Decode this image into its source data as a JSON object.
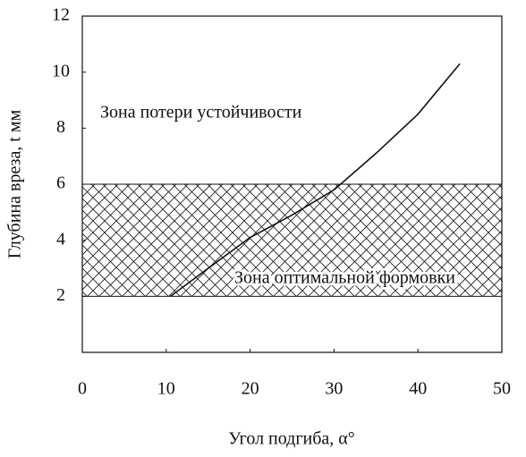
{
  "chart_data": {
    "type": "line",
    "x_label": "Угол подгиба, α°",
    "y_label": "Глубина вреза, t мм",
    "x": [
      10.5,
      15,
      20,
      25,
      30,
      35,
      40,
      45
    ],
    "series": [
      {
        "color": "#111111",
        "values": [
          2.0,
          3.0,
          4.1,
          4.9,
          5.8,
          7.1,
          8.5,
          10.3
        ]
      }
    ],
    "band": [
      2,
      6
    ],
    "annotations": [
      "Зона потери устойчивости",
      "Зона оптимальной формовки"
    ],
    "xlim": [
      0,
      50
    ],
    "xticks": [
      0,
      10,
      20,
      30,
      40,
      50
    ],
    "ylim": [
      0,
      12
    ],
    "yticks": [
      2,
      4,
      6,
      8,
      10,
      12
    ],
    "grid": false
  }
}
